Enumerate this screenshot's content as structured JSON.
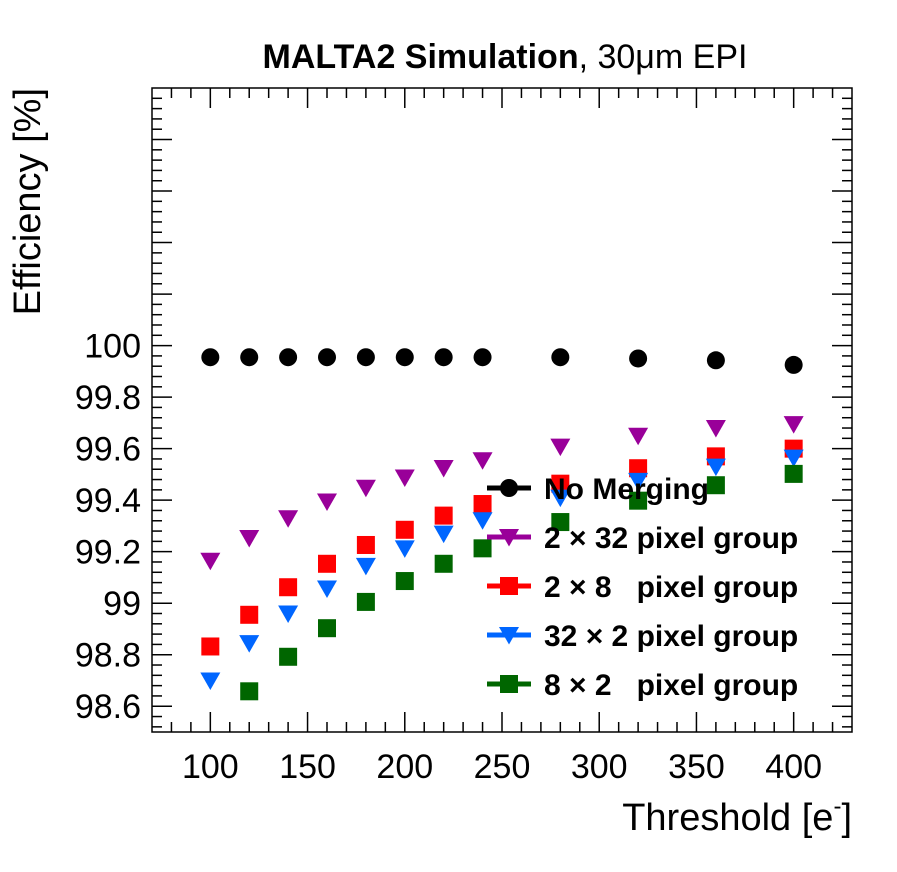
{
  "chart_data": {
    "type": "scatter",
    "title_bold": "MALTA2 Simulation",
    "title_rest": ", 30μm EPI",
    "xlabel": "Threshold [e",
    "xlabel_sup": "-",
    "xlabel_end": "]",
    "ylabel": "Efficiency [%]",
    "xlim": [
      70,
      430
    ],
    "ylim": [
      98.5,
      101.0
    ],
    "x_ticks": [
      100,
      150,
      200,
      250,
      300,
      350,
      400
    ],
    "x_tick_labels": [
      "100",
      "150",
      "200",
      "250",
      "300",
      "350",
      "400"
    ],
    "y_ticks": [
      98.6,
      98.8,
      99.0,
      99.2,
      99.4,
      99.6,
      99.8,
      100.0
    ],
    "y_tick_labels": [
      "98.6",
      "98.8",
      "99",
      "99.2",
      "99.4",
      "99.6",
      "99.8",
      "100"
    ],
    "x": [
      100,
      120,
      140,
      160,
      180,
      200,
      220,
      240,
      280,
      320,
      360,
      400
    ],
    "series": [
      {
        "name": "No Merging",
        "color": "#000000",
        "marker": "circle",
        "values": [
          99.955,
          99.955,
          99.955,
          99.955,
          99.955,
          99.955,
          99.955,
          99.955,
          99.955,
          99.95,
          99.943,
          99.925
        ]
      },
      {
        "name": "2 × 32 pixel group",
        "color": "#990099",
        "marker": "triangle-down",
        "values": [
          99.165,
          99.253,
          99.33,
          99.395,
          99.448,
          99.488,
          99.525,
          99.555,
          99.608,
          99.65,
          99.68,
          99.695
        ]
      },
      {
        "name": "2 × 8   pixel group",
        "color": "#ff0000",
        "marker": "square",
        "values": [
          98.832,
          98.955,
          99.062,
          99.153,
          99.226,
          99.285,
          99.34,
          99.385,
          99.464,
          99.524,
          99.57,
          99.6
        ]
      },
      {
        "name": "32 × 2 pixel group",
        "color": "#0066ff",
        "marker": "triangle-down",
        "values": [
          98.7,
          98.845,
          98.96,
          99.057,
          99.145,
          99.213,
          99.27,
          99.322,
          99.41,
          99.475,
          99.53,
          99.565
        ]
      },
      {
        "name": "8 × 2   pixel group",
        "color": "#006600",
        "marker": "square",
        "values": [
          98.658,
          98.792,
          98.903,
          99.005,
          99.086,
          99.153,
          99.213,
          99.315,
          99.398,
          99.458,
          99.502
        ]
      }
    ],
    "series_x_override": {
      "8 × 2   pixel group": [
        120,
        140,
        160,
        180,
        200,
        220,
        240,
        280,
        320,
        360,
        400
      ]
    },
    "legend_position": "lower-right",
    "grid": false
  }
}
